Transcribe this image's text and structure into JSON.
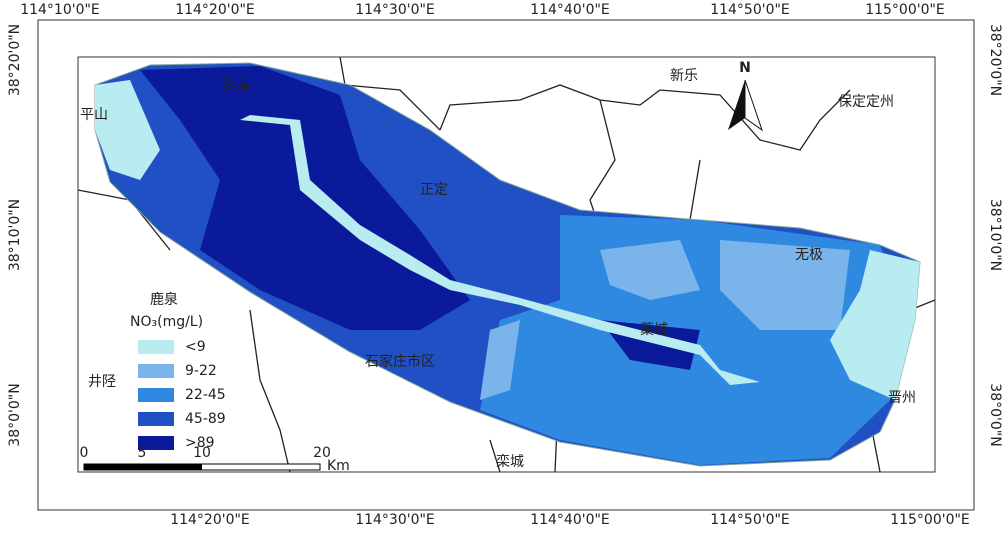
{
  "axes": {
    "top": [
      "114°10'0\"E",
      "114°20'0\"E",
      "114°30'0\"E",
      "114°40'0\"E",
      "114°50'0\"E",
      "115°00'0\"E"
    ],
    "bottom": [
      "114°20'0\"E",
      "114°30'0\"E",
      "114°40'0\"E",
      "114°50'0\"E",
      "115°00'0\"E"
    ],
    "left": [
      "38°20'0\"N",
      "38°10'0\"N",
      "38°0'0\"N"
    ],
    "right": [
      "38°20'0\"N",
      "38°10'0\"N",
      "38°0'0\"N"
    ]
  },
  "places": [
    "平山",
    "灵寿",
    "新乐",
    "保定定州",
    "正定",
    "无极",
    "藁城",
    "石家庄市区",
    "井陉",
    "晋州",
    "栾城",
    "鹿泉"
  ],
  "north": "N",
  "legend": {
    "title": "NO₃(mg/L)",
    "items": [
      {
        "label": "<9",
        "color": "#b9ecf0"
      },
      {
        "label": "9-22",
        "color": "#7ab4ea"
      },
      {
        "label": "22-45",
        "color": "#2f89e0"
      },
      {
        "label": "45-89",
        "color": "#2150c4"
      },
      {
        "label": ">89",
        "color": "#0a1a9a"
      }
    ]
  },
  "scale": {
    "ticks": [
      "0",
      "5",
      "10",
      "20"
    ],
    "unit": "Km"
  }
}
